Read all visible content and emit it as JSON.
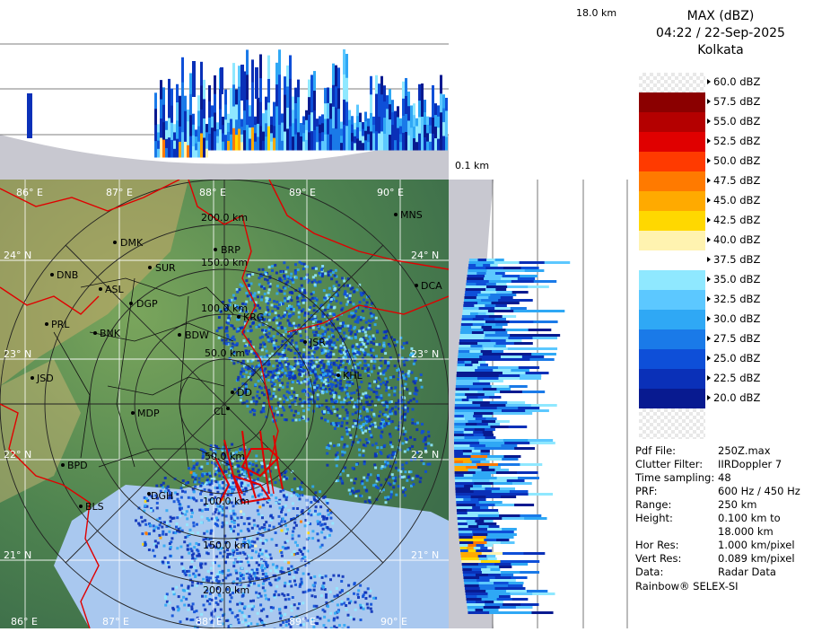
{
  "header": {
    "product": "MAX (dBZ)",
    "datetime": "04:22 / 22-Sep-2025",
    "station": "Kolkata"
  },
  "height_axis": {
    "top_label": "18.0 km",
    "bottom_label": "0.1 km"
  },
  "color_scale": [
    {
      "label": "60.0 dBZ",
      "color": ""
    },
    {
      "label": "57.5 dBZ",
      "color": "#8b0000"
    },
    {
      "label": "55.0 dBZ",
      "color": "#b40000"
    },
    {
      "label": "52.5 dBZ",
      "color": "#e00000"
    },
    {
      "label": "50.0 dBZ",
      "color": "#ff3a00"
    },
    {
      "label": "47.5 dBZ",
      "color": "#ff7a00"
    },
    {
      "label": "45.0 dBZ",
      "color": "#ffaa00"
    },
    {
      "label": "42.5 dBZ",
      "color": "#ffd800"
    },
    {
      "label": "40.0 dBZ",
      "color": "#fff3b0"
    },
    {
      "label": "37.5 dBZ",
      "color": "#ffffff"
    },
    {
      "label": "35.0 dBZ",
      "color": "#8fe8ff"
    },
    {
      "label": "32.5 dBZ",
      "color": "#5cc8ff"
    },
    {
      "label": "30.0 dBZ",
      "color": "#2fa8f5"
    },
    {
      "label": "27.5 dBZ",
      "color": "#1a7ae8"
    },
    {
      "label": "25.0 dBZ",
      "color": "#0e4fd8"
    },
    {
      "label": "22.5 dBZ",
      "color": "#0a30b8"
    },
    {
      "label": "20.0 dBZ",
      "color": "#081a90"
    }
  ],
  "info": [
    {
      "key": "Pdf File:",
      "value": "250Z.max"
    },
    {
      "key": "Clutter Filter:",
      "value": "IIRDoppler 7"
    },
    {
      "key": "Time sampling:",
      "value": "48"
    },
    {
      "key": "PRF:",
      "value": "600 Hz / 450 Hz"
    },
    {
      "key": "Range:",
      "value": "250 km"
    },
    {
      "key": "Height:",
      "value": "0.100 km to"
    },
    {
      "key": "",
      "value": "18.000 km"
    },
    {
      "key": "Hor Res:",
      "value": "1.000 km/pixel"
    },
    {
      "key": "Vert Res:",
      "value": "0.089 km/pixel"
    },
    {
      "key": "Data:",
      "value": "Radar Data"
    }
  ],
  "footer": "Rainbow® SELEX-SI",
  "map": {
    "longitudes": [
      "86° E",
      "87° E",
      "88° E",
      "89° E",
      "90° E"
    ],
    "latitudes": [
      "24° N",
      "23° N",
      "22° N",
      "21° N"
    ],
    "range_rings": [
      "50.0 km",
      "100.0 km",
      "150.0 km",
      "200.0 km"
    ],
    "places": [
      "MNS",
      "DMK",
      "BRP",
      "DNB",
      "SUR",
      "ASL",
      "DGP",
      "DCA",
      "PRL",
      "KRG",
      "BNK",
      "BDW",
      "JSR",
      "KHL",
      "JSD",
      "DD",
      "MDP",
      "CL",
      "BPD",
      "DGH",
      "BLS"
    ]
  },
  "colors": {
    "map_land": "#5e8f52",
    "boundary": "#e00000",
    "ring": "#222222",
    "side_bg": "#c8c8d0"
  }
}
